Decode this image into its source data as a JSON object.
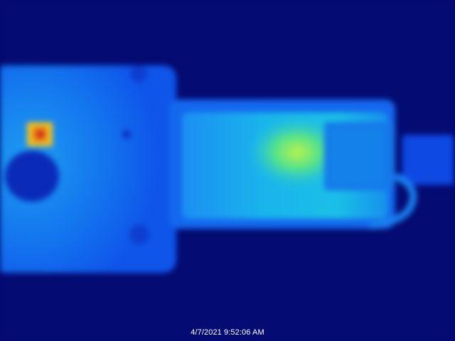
{
  "image": {
    "kind": "thermal-camera-frame",
    "palette": "rainbow",
    "colors": {
      "background": "#040b72",
      "cold": "#0a2ed8",
      "body": "#0f5cf0",
      "warm": "#17d3e0",
      "hot_zone": "#9ef05a",
      "hotspot": "#f2c21b",
      "hotspot_core": "#d3201a"
    }
  },
  "overlay": {
    "timestamp": "4/7/2021 9:52:06 AM"
  }
}
